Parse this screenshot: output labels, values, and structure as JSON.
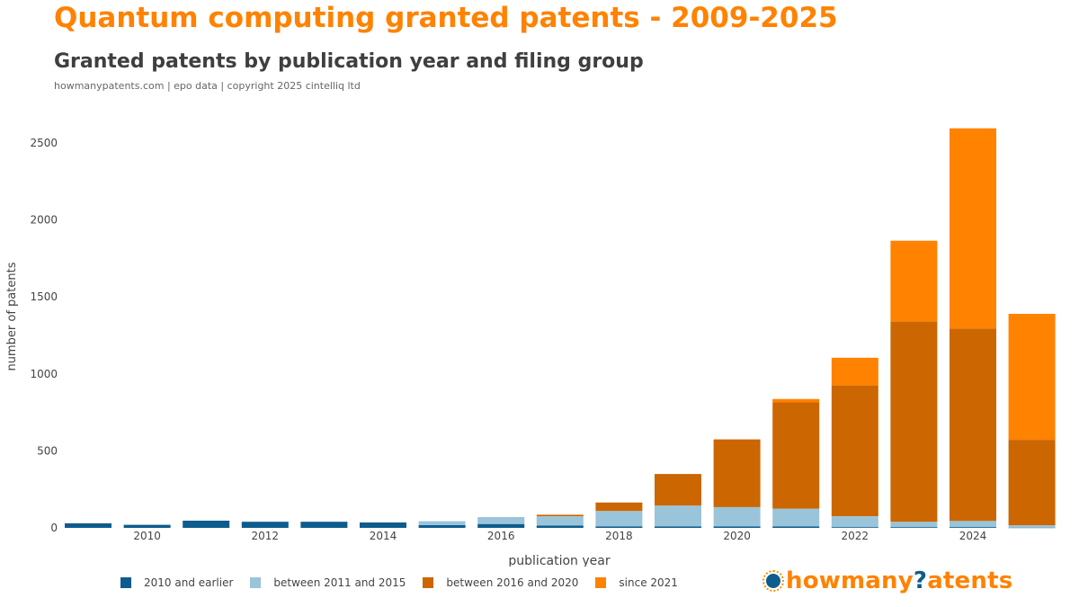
{
  "header": {
    "title": "Quantum computing granted patents - 2009-2025",
    "subtitle": "Granted patents by publication year and filing group",
    "source": "howmanypatents.com | epo data | copyright 2025 cintelliq ltd"
  },
  "brand": {
    "prefix": "howmany",
    "q": "?",
    "suffix": "atents",
    "icon": "howmanypatents-logo-icon"
  },
  "colors": {
    "series_2010_earlier": "#0e5c8e",
    "series_2011_2015": "#9ac4da",
    "series_2016_2020": "#cc6600",
    "series_since_2021": "#ff8200",
    "title": "#ff8200",
    "axis_text": "#444444"
  },
  "chart_data": {
    "type": "bar",
    "stacked": true,
    "title": "Granted patents by publication year and filing group",
    "xlabel": "publication year",
    "ylabel": "number of patents",
    "categories": [
      2009,
      2010,
      2011,
      2012,
      2013,
      2014,
      2015,
      2016,
      2017,
      2018,
      2019,
      2020,
      2021,
      2022,
      2023,
      2024,
      2025
    ],
    "x_tick_labels": [
      "2010",
      "2012",
      "2014",
      "2016",
      "2018",
      "2020",
      "2022",
      "2024"
    ],
    "y_ticks": [
      0,
      500,
      1000,
      1500,
      2000,
      2500
    ],
    "ylim": [
      0,
      2700
    ],
    "grid": false,
    "legend_position": "bottom-left",
    "series": [
      {
        "name": "2010 and earlier",
        "values": [
          30,
          20,
          47,
          40,
          40,
          35,
          18,
          25,
          15,
          10,
          10,
          10,
          10,
          5,
          5,
          5,
          2
        ]
      },
      {
        "name": "between 2011 and 2015",
        "values": [
          0,
          0,
          0,
          0,
          0,
          0,
          25,
          45,
          60,
          100,
          135,
          125,
          115,
          70,
          35,
          40,
          15
        ]
      },
      {
        "name": "between 2016 and 2020",
        "values": [
          0,
          0,
          0,
          0,
          0,
          0,
          0,
          0,
          10,
          55,
          205,
          440,
          690,
          850,
          1300,
          1250,
          555
        ]
      },
      {
        "name": "since 2021",
        "values": [
          0,
          0,
          0,
          0,
          0,
          0,
          0,
          0,
          0,
          0,
          0,
          0,
          22,
          180,
          525,
          1300,
          818
        ]
      }
    ]
  }
}
